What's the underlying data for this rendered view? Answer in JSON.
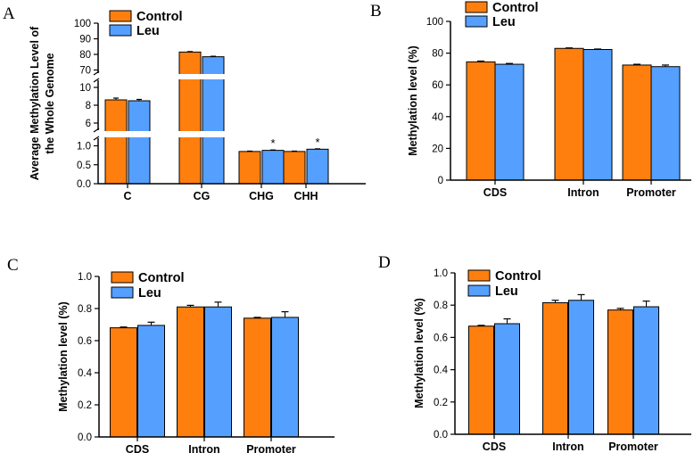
{
  "colors": {
    "control": "#ff7f0e",
    "leu": "#55a0ff",
    "axis": "#000000"
  },
  "chart_data": [
    {
      "panel": "A",
      "type": "bar",
      "ylabel": [
        "Average Methylation Level of",
        "the Whole Genome"
      ],
      "categories": [
        "C",
        "CG",
        "CHG",
        "CHH"
      ],
      "series": [
        {
          "name": "Control",
          "values": [
            8.6,
            81.5,
            0.85,
            0.85
          ],
          "errors": [
            0.2,
            0.3,
            0.01,
            0.01
          ]
        },
        {
          "name": "Leu",
          "values": [
            8.5,
            78.5,
            0.88,
            0.91
          ],
          "errors": [
            0.15,
            0.3,
            0.01,
            0.01
          ]
        }
      ],
      "annotations": [
        {
          "category": "CHG",
          "series": "Leu",
          "text": "*"
        },
        {
          "category": "CHH",
          "series": "Leu",
          "text": "*"
        }
      ],
      "broken_axis": [
        {
          "range": [
            0,
            1.2
          ],
          "ticks": [
            "0.0",
            "0.5",
            "1.0"
          ]
        },
        {
          "range": [
            5.2,
            10.8
          ],
          "ticks": [
            "6",
            "8",
            "10"
          ]
        },
        {
          "range": [
            68,
            100
          ],
          "ticks": [
            "70",
            "80",
            "90",
            "100"
          ]
        }
      ],
      "grid": false,
      "legend": "top"
    },
    {
      "panel": "B",
      "type": "bar",
      "ylabel": "Methylation level (%)",
      "categories": [
        "CDS",
        "Intron",
        "Promoter"
      ],
      "series": [
        {
          "name": "Control",
          "values": [
            74.5,
            83.0,
            72.5
          ],
          "errors": [
            0.5,
            0.3,
            0.5
          ]
        },
        {
          "name": "Leu",
          "values": [
            73.0,
            82.3,
            71.5
          ],
          "errors": [
            0.5,
            0.3,
            1.0
          ]
        }
      ],
      "ylim": [
        0,
        100
      ],
      "yticks": [
        "0",
        "20",
        "40",
        "60",
        "80",
        "100"
      ],
      "grid": false,
      "legend": "top"
    },
    {
      "panel": "C",
      "type": "bar",
      "ylabel": "Methylation level (%)",
      "categories": [
        "CDS",
        "Intron",
        "Promoter"
      ],
      "series": [
        {
          "name": "Control",
          "values": [
            0.68,
            0.81,
            0.74
          ],
          "errors": [
            0.005,
            0.01,
            0.005
          ]
        },
        {
          "name": "Leu",
          "values": [
            0.695,
            0.81,
            0.745
          ],
          "errors": [
            0.02,
            0.03,
            0.035
          ]
        }
      ],
      "ylim": [
        0,
        1.0
      ],
      "yticks": [
        "0.0",
        "0.2",
        "0.4",
        "0.6",
        "0.8",
        "1.0"
      ],
      "grid": false,
      "legend": "top"
    },
    {
      "panel": "D",
      "type": "bar",
      "ylabel": "Methylation level (%)",
      "categories": [
        "CDS",
        "Intron",
        "Promoter"
      ],
      "series": [
        {
          "name": "Control",
          "values": [
            0.67,
            0.815,
            0.77
          ],
          "errors": [
            0.005,
            0.015,
            0.01
          ]
        },
        {
          "name": "Leu",
          "values": [
            0.685,
            0.83,
            0.79
          ],
          "errors": [
            0.03,
            0.035,
            0.035
          ]
        }
      ],
      "ylim": [
        0,
        1.0
      ],
      "yticks": [
        "0.0",
        "0.2",
        "0.4",
        "0.6",
        "0.8",
        "1.0"
      ],
      "grid": false,
      "legend": "top"
    }
  ]
}
